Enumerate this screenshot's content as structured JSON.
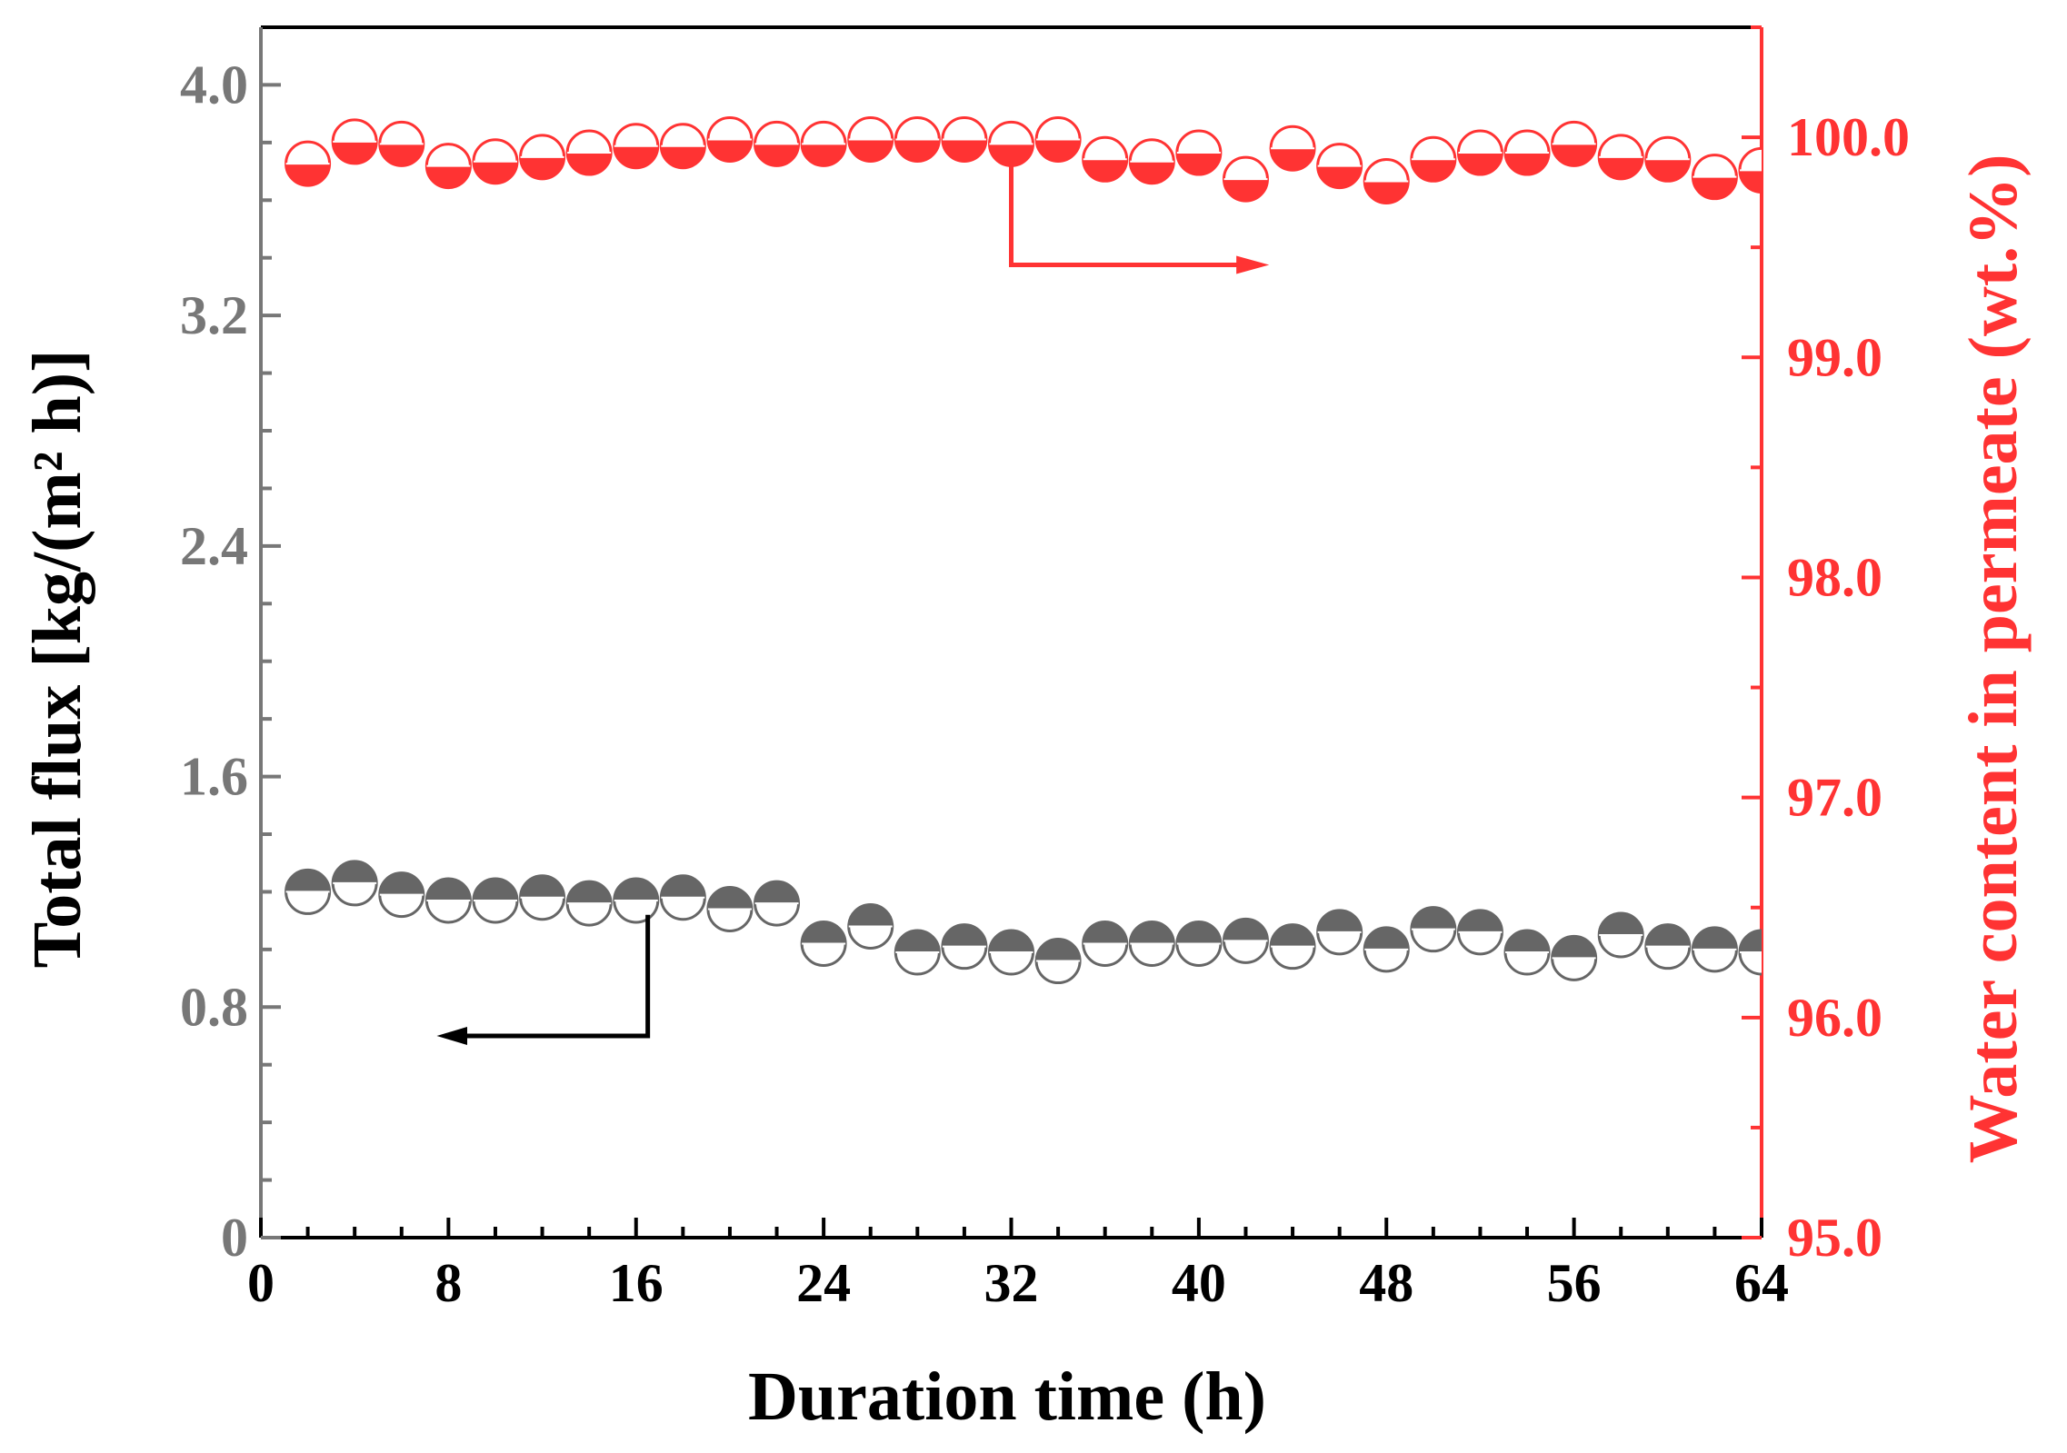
{
  "chart_data": {
    "type": "scatter",
    "title": "",
    "xlabel": "Duration time (h)",
    "ylabel_left": "Total flux [kg/(m² h)]",
    "ylabel_right": "Water content in permeate (wt.%)",
    "xlim": [
      0,
      64
    ],
    "ylim_left": [
      0,
      4.2
    ],
    "ylim_right": [
      95.0,
      100.5
    ],
    "x_ticks": [
      "0",
      "8",
      "16",
      "24",
      "32",
      "40",
      "48",
      "56",
      "64"
    ],
    "y_left_ticks": [
      "0",
      "0.8",
      "1.6",
      "2.4",
      "3.2",
      "4.0"
    ],
    "y_right_ticks": [
      "95.0",
      "96.0",
      "97.0",
      "98.0",
      "99.0",
      "100.0"
    ],
    "x": [
      2,
      4,
      6,
      8,
      10,
      12,
      14,
      16,
      18,
      20,
      22,
      24,
      26,
      28,
      30,
      32,
      34,
      36,
      38,
      40,
      42,
      44,
      46,
      48,
      50,
      52,
      54,
      56,
      58,
      60,
      62,
      64
    ],
    "series": [
      {
        "name": "Total flux",
        "axis": "left",
        "color": "#666666",
        "values": [
          1.2,
          1.23,
          1.19,
          1.17,
          1.17,
          1.18,
          1.16,
          1.17,
          1.18,
          1.14,
          1.16,
          1.02,
          1.08,
          0.99,
          1.01,
          0.99,
          0.96,
          1.02,
          1.02,
          1.02,
          1.03,
          1.01,
          1.06,
          1.0,
          1.07,
          1.06,
          0.99,
          0.97,
          1.05,
          1.01,
          1.0,
          0.99
        ]
      },
      {
        "name": "Water content",
        "axis": "right",
        "color": "#ff3333",
        "values": [
          99.88,
          99.98,
          99.97,
          99.87,
          99.89,
          99.91,
          99.93,
          99.96,
          99.96,
          99.99,
          99.97,
          99.97,
          99.99,
          99.99,
          99.99,
          99.97,
          99.99,
          99.9,
          99.89,
          99.93,
          99.81,
          99.95,
          99.87,
          99.8,
          99.9,
          99.93,
          99.93,
          99.97,
          99.91,
          99.9,
          99.82,
          99.85
        ]
      }
    ],
    "annotations": [
      {
        "text": "arrow pointing to left axis",
        "series": "Total flux"
      },
      {
        "text": "arrow pointing to right axis",
        "series": "Water content"
      }
    ],
    "colors": {
      "left_axis": "#000000",
      "left_ticks": "#777777",
      "right_axis": "#ff3333"
    }
  }
}
